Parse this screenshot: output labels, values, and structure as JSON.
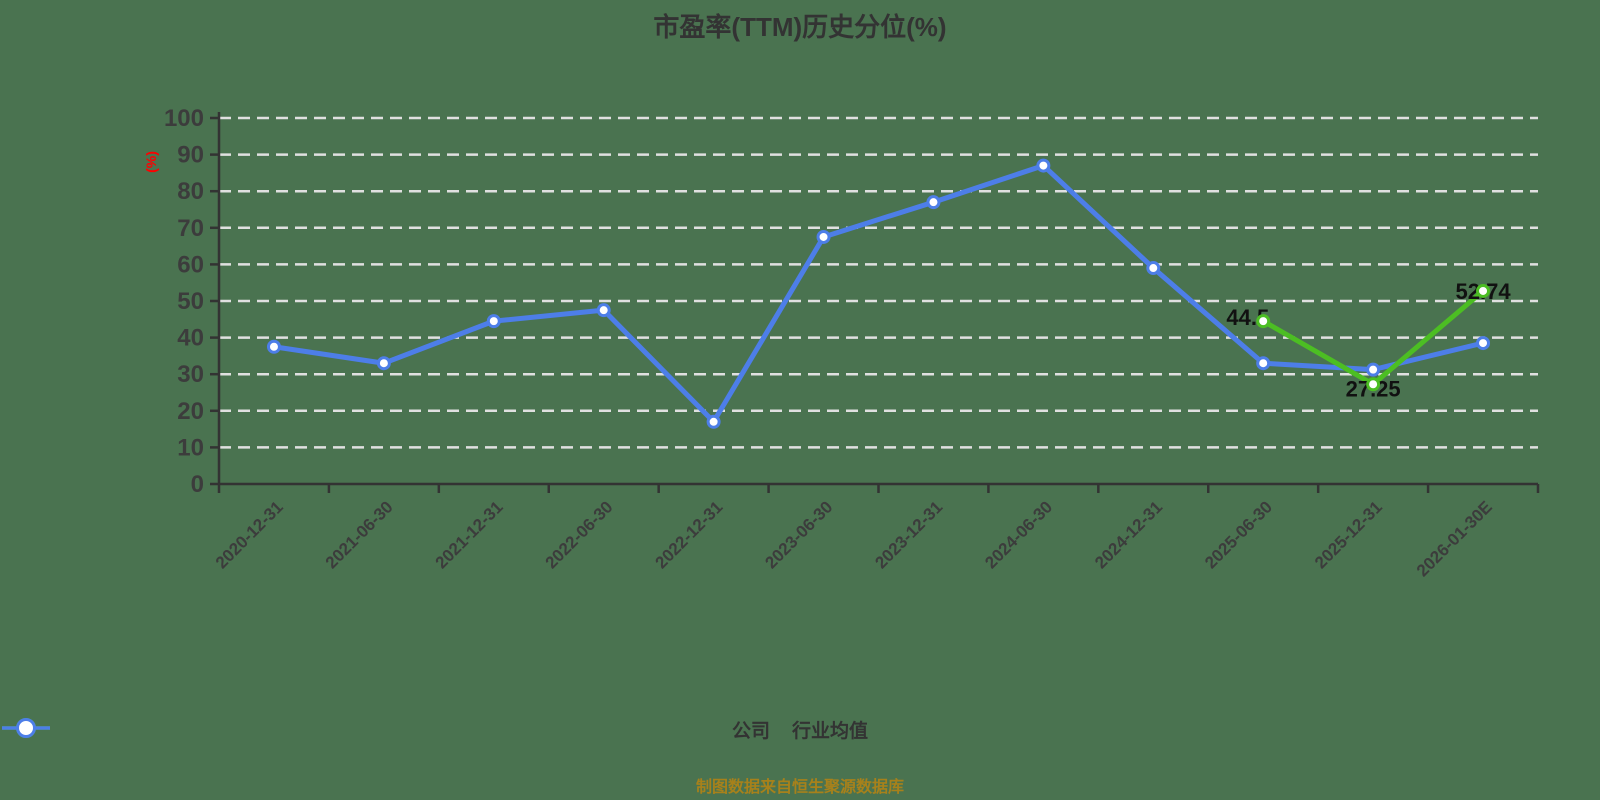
{
  "title": "市盈率(TTM)历史分位(%)",
  "footer": {
    "text": "制图数据来自恒生聚源数据库"
  },
  "colors": {
    "background": "#4A7350",
    "axis": "#333333",
    "grid": "#E0E0E0",
    "tick_label": "#3C3C3C",
    "title": "#333333",
    "unit_label": "#FF0000",
    "value_label": "#111111",
    "footer": "#A7811B",
    "company": "#4CBE23",
    "industry_average": "#4D7EE8"
  },
  "legend": [
    {
      "key": "company",
      "label": "公司",
      "color": "#4CBE23"
    },
    {
      "key": "industry-average",
      "label": "行业均值",
      "color": "#4D7EE8"
    }
  ],
  "chart_data": {
    "type": "line",
    "title": "市盈率(TTM)历史分位(%)",
    "xlabel": "",
    "ylabel": "(%)",
    "ylim": [
      0,
      100
    ],
    "y_ticks": [
      0,
      10,
      20,
      30,
      40,
      50,
      60,
      70,
      80,
      90,
      100
    ],
    "grid": "horizontal-dashed-white",
    "legend_position": "bottom",
    "categories": [
      "2020-12-31",
      "2021-06-30",
      "2021-12-31",
      "2022-06-30",
      "2022-12-31",
      "2023-06-30",
      "2023-12-31",
      "2024-06-30",
      "2024-12-31",
      "2025-06-30",
      "2025-12-31",
      "2026-01-30E"
    ],
    "series": [
      {
        "key": "industry-average",
        "name": "行业均值",
        "color": "#4D7EE8",
        "x_indices": [
          0,
          1,
          2,
          3,
          4,
          5,
          6,
          7,
          8,
          9,
          10,
          11
        ],
        "values": [
          37.5,
          33,
          44.5,
          47.5,
          17,
          67.5,
          77,
          87,
          59,
          33,
          31.25,
          38.5
        ]
      },
      {
        "key": "company",
        "name": "公司",
        "color": "#4CBE23",
        "x_indices": [
          9,
          10,
          11
        ],
        "values": [
          44.5,
          27.25,
          52.74
        ],
        "value_labels": [
          "44.5",
          "27.25",
          "52.74"
        ]
      }
    ]
  }
}
